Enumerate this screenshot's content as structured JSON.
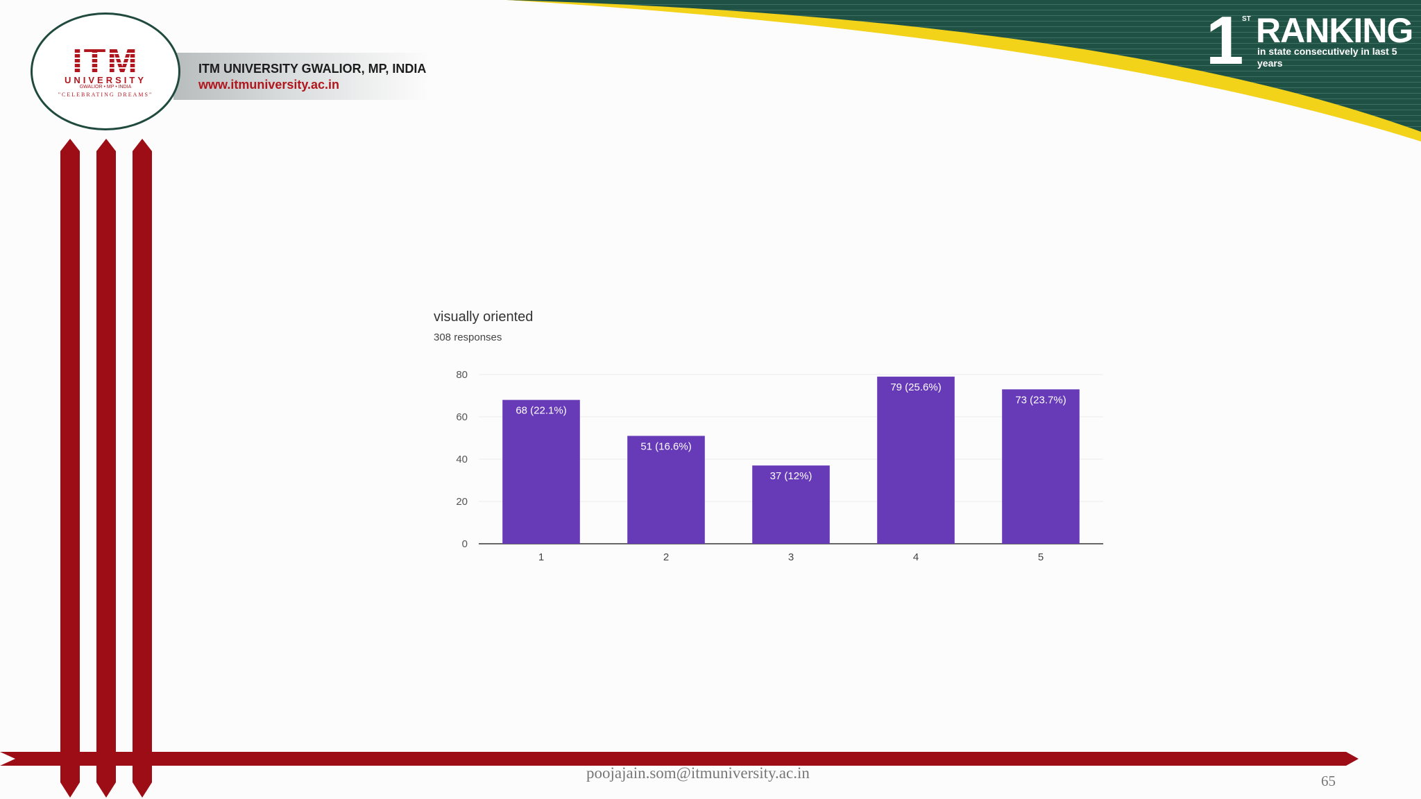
{
  "header": {
    "logo": {
      "name": "ITM",
      "subtitle": "UNIVERSITY",
      "location": "GWALIOR • MP • INDIA",
      "tagline": "\"CELEBRATING DREAMS\""
    },
    "university_name": "ITM UNIVERSITY GWALIOR, MP, INDIA",
    "website": "www.itmuniversity.ac.in"
  },
  "ranking": {
    "number": "1",
    "ordinal": "ST",
    "title": "RANKING",
    "subtitle": "in state consecutively in last 5 years"
  },
  "colors": {
    "brand_red": "#9d0d15",
    "brand_green": "#1f5244",
    "accent_yellow": "#f3d21a",
    "bar_purple": "#673ab7"
  },
  "chart_data": {
    "type": "bar",
    "title": "visually oriented",
    "subtitle": "308 responses",
    "categories": [
      "1",
      "2",
      "3",
      "4",
      "5"
    ],
    "values": [
      68,
      51,
      37,
      79,
      73
    ],
    "data_labels": [
      "68 (22.1%)",
      "51 (16.6%)",
      "37 (12%)",
      "79 (25.6%)",
      "73 (23.7%)"
    ],
    "yticks": [
      "0",
      "20",
      "40",
      "60",
      "80"
    ],
    "ylim": [
      0,
      80
    ],
    "grid": true,
    "color": "#673ab7"
  },
  "footer": {
    "email": "poojajain.som@itmuniversity.ac.in",
    "page_number": "65"
  }
}
